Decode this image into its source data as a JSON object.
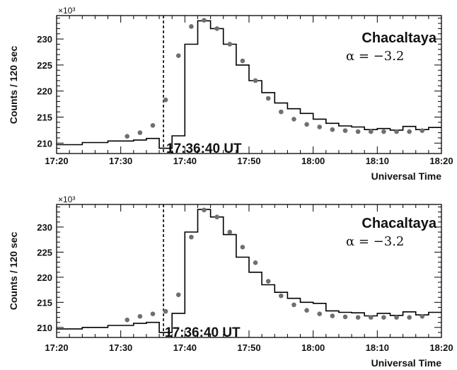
{
  "chart_data": [
    {
      "type": "line",
      "ylabel": "Counts / 120 sec",
      "y_multiplier_label": "×10³",
      "xlabel": "Universal Time",
      "xlim": [
        "17:20",
        "18:20"
      ],
      "ylim": [
        208,
        234.5
      ],
      "x_ticks": [
        "17:20",
        "17:30",
        "17:40",
        "17:50",
        "18:00",
        "18:10",
        "18:20"
      ],
      "y_ticks": [
        210,
        215,
        220,
        225,
        230
      ],
      "station": "Chacaltaya",
      "alpha_label": "α = −3.2",
      "marker": {
        "time": "17:36:40",
        "label": "17:36:40 UT"
      },
      "series": [
        {
          "style": "step",
          "x": [
            "17:20",
            "17:24",
            "17:28",
            "17:32",
            "17:34",
            "17:36",
            "17:38",
            "17:40",
            "17:42",
            "17:44",
            "17:46",
            "17:48",
            "17:50",
            "17:52",
            "17:54",
            "17:56",
            "17:58",
            "18:00",
            "18:02",
            "18:04",
            "18:06",
            "18:08",
            "18:10",
            "18:12",
            "18:14",
            "18:16",
            "18:18",
            "18:20"
          ],
          "values": [
            209.7,
            210.1,
            210.4,
            210.6,
            210.9,
            209.0,
            211.4,
            229.0,
            233.5,
            232.0,
            229.0,
            225.0,
            222.0,
            219.7,
            217.7,
            216.6,
            215.7,
            214.6,
            213.8,
            213.3,
            213.1,
            212.6,
            212.8,
            212.5,
            213.2,
            212.6,
            213.0,
            213.0
          ]
        },
        {
          "style": "markers",
          "x": [
            "17:31",
            "17:33",
            "17:35",
            "17:37",
            "17:39",
            "17:41",
            "17:43",
            "17:45",
            "17:47",
            "17:49",
            "17:51",
            "17:53",
            "17:55",
            "17:57",
            "17:59",
            "18:01",
            "18:03",
            "18:05",
            "18:07",
            "18:09",
            "18:11",
            "18:13",
            "18:15",
            "18:17"
          ],
          "values": [
            211.3,
            212.0,
            213.4,
            218.3,
            226.8,
            232.4,
            233.6,
            232.0,
            229.0,
            225.8,
            222.0,
            218.6,
            216.0,
            214.6,
            213.6,
            213.1,
            212.6,
            212.4,
            212.2,
            212.2,
            212.2,
            212.2,
            212.2,
            212.4
          ]
        }
      ]
    },
    {
      "type": "line",
      "ylabel": "Counts / 120 sec",
      "y_multiplier_label": "×10³",
      "xlabel": "Universal Time",
      "xlim": [
        "17:20",
        "18:20"
      ],
      "ylim": [
        208,
        234.5
      ],
      "x_ticks": [
        "17:20",
        "17:30",
        "17:40",
        "17:50",
        "18:00",
        "18:10",
        "18:20"
      ],
      "y_ticks": [
        210,
        215,
        220,
        225,
        230
      ],
      "station": "Chacaltaya",
      "alpha_label": "α = −3.2",
      "marker": {
        "time": "17:36:40",
        "label": "17:36:40 UT"
      },
      "series": [
        {
          "style": "step",
          "x": [
            "17:20",
            "17:24",
            "17:28",
            "17:32",
            "17:34",
            "17:36",
            "17:38",
            "17:40",
            "17:42",
            "17:44",
            "17:46",
            "17:48",
            "17:50",
            "17:52",
            "17:54",
            "17:56",
            "17:58",
            "18:00",
            "18:02",
            "18:04",
            "18:06",
            "18:08",
            "18:10",
            "18:12",
            "18:14",
            "18:16",
            "18:18",
            "18:20"
          ],
          "values": [
            209.7,
            210.0,
            210.4,
            210.8,
            211.0,
            209.0,
            212.8,
            229.0,
            233.5,
            232.0,
            228.5,
            224.0,
            221.0,
            218.5,
            217.0,
            215.8,
            215.0,
            214.8,
            213.3,
            213.0,
            212.9,
            212.3,
            212.8,
            212.4,
            213.1,
            212.5,
            213.0,
            213.0
          ]
        },
        {
          "style": "markers",
          "x": [
            "17:31",
            "17:33",
            "17:35",
            "17:37",
            "17:39",
            "17:41",
            "17:43",
            "17:45",
            "17:47",
            "17:49",
            "17:51",
            "17:53",
            "17:55",
            "17:57",
            "17:59",
            "18:01",
            "18:03",
            "18:05",
            "18:07",
            "18:09",
            "18:11",
            "18:13",
            "18:15",
            "18:17"
          ],
          "values": [
            211.5,
            212.2,
            212.7,
            213.2,
            216.5,
            228.0,
            233.4,
            232.0,
            229.0,
            226.0,
            222.9,
            219.2,
            216.3,
            214.5,
            213.4,
            212.7,
            212.3,
            212.1,
            212.0,
            212.0,
            212.0,
            212.0,
            212.0,
            212.2
          ]
        }
      ]
    }
  ]
}
